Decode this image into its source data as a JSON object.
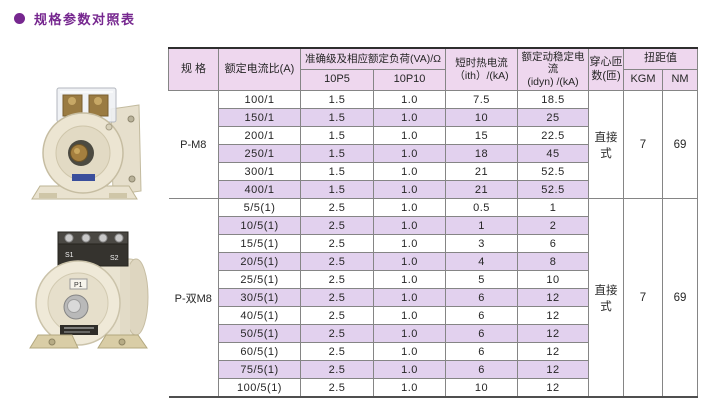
{
  "page": {
    "title": "规格参数对照表"
  },
  "colors": {
    "accent": "#76278f",
    "header_bg": "#eed7ee",
    "stripe_bg": "#e2d1ee",
    "photo_body": "#ece5d2",
    "terminal_block": "#35332e"
  },
  "photos": {
    "pm8_alt": "P-M8 current transformer photo",
    "pm8d_alt": "P-双M8 current transformer photo",
    "labels": {
      "s1": "S1",
      "s2": "S2",
      "p1": "P1"
    }
  },
  "table": {
    "headers": {
      "spec": "规 格",
      "ratio": "额定电流比(A)",
      "accuracy": "准确级及相应额定负荷(VA)/Ω",
      "p5": "10P5",
      "p10": "10P10",
      "ith": "短时热电流\n（ith）/(kA)",
      "idyn": "额定动稳定电流\n(idyn) /(kA)",
      "turns": "穿心匝数(匝)",
      "torque": "扭距值",
      "kgm": "KGM",
      "nm": "NM"
    },
    "groups": [
      {
        "spec": "P-M8",
        "turns": "直接式",
        "kgm": "7",
        "nm": "69",
        "rows": [
          {
            "ratio": "100/1",
            "p5": "1.5",
            "p10": "1.0",
            "ith": "7.5",
            "idyn": "18.5"
          },
          {
            "ratio": "150/1",
            "p5": "1.5",
            "p10": "1.0",
            "ith": "10",
            "idyn": "25"
          },
          {
            "ratio": "200/1",
            "p5": "1.5",
            "p10": "1.0",
            "ith": "15",
            "idyn": "22.5"
          },
          {
            "ratio": "250/1",
            "p5": "1.5",
            "p10": "1.0",
            "ith": "18",
            "idyn": "45"
          },
          {
            "ratio": "300/1",
            "p5": "1.5",
            "p10": "1.0",
            "ith": "21",
            "idyn": "52.5"
          },
          {
            "ratio": "400/1",
            "p5": "1.5",
            "p10": "1.0",
            "ith": "21",
            "idyn": "52.5"
          }
        ]
      },
      {
        "spec": "P-双M8",
        "turns": "直接式",
        "kgm": "7",
        "nm": "69",
        "rows": [
          {
            "ratio": "5/5(1)",
            "p5": "2.5",
            "p10": "1.0",
            "ith": "0.5",
            "idyn": "1"
          },
          {
            "ratio": "10/5(1)",
            "p5": "2.5",
            "p10": "1.0",
            "ith": "1",
            "idyn": "2"
          },
          {
            "ratio": "15/5(1)",
            "p5": "2.5",
            "p10": "1.0",
            "ith": "3",
            "idyn": "6"
          },
          {
            "ratio": "20/5(1)",
            "p5": "2.5",
            "p10": "1.0",
            "ith": "4",
            "idyn": "8"
          },
          {
            "ratio": "25/5(1)",
            "p5": "2.5",
            "p10": "1.0",
            "ith": "5",
            "idyn": "10"
          },
          {
            "ratio": "30/5(1)",
            "p5": "2.5",
            "p10": "1.0",
            "ith": "6",
            "idyn": "12"
          },
          {
            "ratio": "40/5(1)",
            "p5": "2.5",
            "p10": "1.0",
            "ith": "6",
            "idyn": "12"
          },
          {
            "ratio": "50/5(1)",
            "p5": "2.5",
            "p10": "1.0",
            "ith": "6",
            "idyn": "12"
          },
          {
            "ratio": "60/5(1)",
            "p5": "2.5",
            "p10": "1.0",
            "ith": "6",
            "idyn": "12"
          },
          {
            "ratio": "75/5(1)",
            "p5": "2.5",
            "p10": "1.0",
            "ith": "6",
            "idyn": "12"
          },
          {
            "ratio": "100/5(1)",
            "p5": "2.5",
            "p10": "1.0",
            "ith": "10",
            "idyn": "12"
          }
        ]
      }
    ]
  }
}
